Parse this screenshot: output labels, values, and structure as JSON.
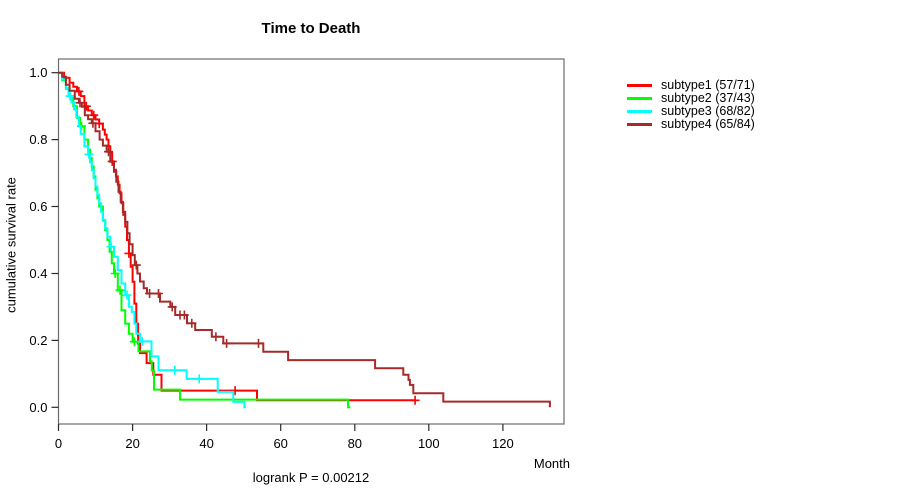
{
  "title": "Time to Death",
  "xlabel": "Month",
  "ylabel": "cumulative survival rate",
  "footnote": "logrank P = 0.00212",
  "legend": {
    "position": "right",
    "items": [
      {
        "label": "subtype1 (57/71)",
        "color": "#ff0000"
      },
      {
        "label": "subtype2 (37/43)",
        "color": "#00ff00"
      },
      {
        "label": "subtype3 (68/82)",
        "color": "#00ffff"
      },
      {
        "label": "subtype4 (65/84)",
        "color": "#a52a2a"
      }
    ]
  },
  "chart_data": {
    "type": "line",
    "subtype": "kaplan-meier-step",
    "title": "Time to Death",
    "xlabel": "Month",
    "ylabel": "cumulative survival rate",
    "annotation": "logrank P = 0.00212",
    "legend_position": "right",
    "grid": false,
    "xlim": [
      0,
      136.5
    ],
    "ylim": [
      0,
      1.04
    ],
    "x_ticks": [
      {
        "value": 0,
        "label": "0"
      },
      {
        "value": 20,
        "label": "20"
      },
      {
        "value": 40,
        "label": "40"
      },
      {
        "value": 60,
        "label": "60"
      },
      {
        "value": 80,
        "label": "80"
      },
      {
        "value": 100,
        "label": "100"
      },
      {
        "value": 120,
        "label": "120"
      }
    ],
    "y_ticks": [
      {
        "value": 0.0,
        "label": "0.0"
      },
      {
        "value": 0.2,
        "label": "0.2"
      },
      {
        "value": 0.4,
        "label": "0.4"
      },
      {
        "value": 0.6,
        "label": "0.6"
      },
      {
        "value": 0.8,
        "label": "0.8"
      },
      {
        "value": 1.0,
        "label": "1.0"
      }
    ],
    "series": [
      {
        "id": "subtype1",
        "name": "subtype1 (57/71)",
        "events": 57,
        "n": 71,
        "color": "#ff0000",
        "steps": [
          [
            0,
            1
          ],
          [
            1.5,
            0.985
          ],
          [
            3,
            0.97
          ],
          [
            4,
            0.958
          ],
          [
            5,
            0.944
          ],
          [
            6,
            0.93
          ],
          [
            7,
            0.9
          ],
          [
            8,
            0.887
          ],
          [
            9,
            0.873
          ],
          [
            10,
            0.86
          ],
          [
            11,
            0.848
          ],
          [
            12,
            0.83
          ],
          [
            12.5,
            0.815
          ],
          [
            13,
            0.8
          ],
          [
            13.5,
            0.78
          ],
          [
            14,
            0.76
          ],
          [
            14.5,
            0.735
          ],
          [
            15,
            0.71
          ],
          [
            15.5,
            0.69
          ],
          [
            16,
            0.665
          ],
          [
            16.5,
            0.64
          ],
          [
            17,
            0.61
          ],
          [
            17.5,
            0.575
          ],
          [
            18,
            0.54
          ],
          [
            18.5,
            0.5
          ],
          [
            19,
            0.46
          ],
          [
            19.5,
            0.42
          ],
          [
            20,
            0.375
          ],
          [
            20.5,
            0.31
          ],
          [
            21,
            0.25
          ],
          [
            21.5,
            0.19
          ],
          [
            22,
            0.162
          ],
          [
            23.8,
            0.132
          ],
          [
            25.6,
            0.097
          ],
          [
            27.8,
            0.05
          ],
          [
            53.6,
            0.021
          ],
          [
            96.5,
            0.021
          ]
        ],
        "censor_times": [
          5.5,
          7.5,
          9.5,
          11,
          14.5,
          19,
          47.7,
          96.3
        ]
      },
      {
        "id": "subtype2",
        "name": "subtype2 (37/43)",
        "events": 37,
        "n": 43,
        "color": "#00ff00",
        "steps": [
          [
            0,
            1
          ],
          [
            1,
            0.977
          ],
          [
            2,
            0.953
          ],
          [
            3,
            0.93
          ],
          [
            4,
            0.9
          ],
          [
            5,
            0.865
          ],
          [
            5.8,
            0.84
          ],
          [
            7,
            0.8
          ],
          [
            8,
            0.77
          ],
          [
            8.5,
            0.745
          ],
          [
            9,
            0.72
          ],
          [
            9.5,
            0.69
          ],
          [
            10,
            0.65
          ],
          [
            10.5,
            0.625
          ],
          [
            11,
            0.6
          ],
          [
            12,
            0.558
          ],
          [
            12.6,
            0.53
          ],
          [
            13.2,
            0.5
          ],
          [
            13.8,
            0.465
          ],
          [
            14.4,
            0.43
          ],
          [
            15,
            0.4
          ],
          [
            16,
            0.35
          ],
          [
            17,
            0.29
          ],
          [
            18,
            0.25
          ],
          [
            19,
            0.22
          ],
          [
            20,
            0.196
          ],
          [
            21.6,
            0.167
          ],
          [
            24.7,
            0.137
          ],
          [
            25.2,
            0.11
          ],
          [
            25.8,
            0.053
          ],
          [
            32.8,
            0.023
          ],
          [
            78,
            0.023
          ],
          [
            78.2,
            0
          ],
          [
            78.8,
            0
          ]
        ],
        "censor_times": [
          6.2,
          15.3,
          16.6,
          20.5
        ]
      },
      {
        "id": "subtype3",
        "name": "subtype3 (68/82)",
        "events": 68,
        "n": 82,
        "color": "#00ffff",
        "steps": [
          [
            0,
            1
          ],
          [
            1,
            0.98
          ],
          [
            2,
            0.951
          ],
          [
            2.7,
            0.93
          ],
          [
            3.5,
            0.912
          ],
          [
            4.2,
            0.89
          ],
          [
            4.8,
            0.868
          ],
          [
            5.5,
            0.84
          ],
          [
            6,
            0.817
          ],
          [
            7,
            0.78
          ],
          [
            8,
            0.756
          ],
          [
            8.5,
            0.732
          ],
          [
            9,
            0.708
          ],
          [
            9.5,
            0.684
          ],
          [
            10,
            0.66
          ],
          [
            10.5,
            0.635
          ],
          [
            11,
            0.61
          ],
          [
            11.5,
            0.585
          ],
          [
            12,
            0.56
          ],
          [
            12.6,
            0.535
          ],
          [
            13.2,
            0.51
          ],
          [
            14,
            0.48
          ],
          [
            15,
            0.45
          ],
          [
            16,
            0.41
          ],
          [
            17,
            0.37
          ],
          [
            18,
            0.335
          ],
          [
            19,
            0.3
          ],
          [
            19.8,
            0.285
          ],
          [
            20.5,
            0.25
          ],
          [
            21,
            0.22
          ],
          [
            22,
            0.197
          ],
          [
            25.1,
            0.152
          ],
          [
            27,
            0.111
          ],
          [
            34.6,
            0.085
          ],
          [
            43,
            0.046
          ],
          [
            47.2,
            0.016
          ],
          [
            50.2,
            0
          ],
          [
            50.6,
            0
          ]
        ],
        "censor_times": [
          3.1,
          8.2,
          14.2,
          18.5,
          22.6,
          31.4,
          38
        ]
      },
      {
        "id": "subtype4",
        "name": "subtype4 (65/84)",
        "events": 65,
        "n": 84,
        "color": "#a52a2a",
        "steps": [
          [
            0,
            1
          ],
          [
            1,
            0.988
          ],
          [
            2,
            0.964
          ],
          [
            3,
            0.946
          ],
          [
            4.4,
            0.922
          ],
          [
            5.5,
            0.91
          ],
          [
            6.3,
            0.898
          ],
          [
            7.1,
            0.873
          ],
          [
            8,
            0.861
          ],
          [
            9,
            0.849
          ],
          [
            10,
            0.825
          ],
          [
            11.1,
            0.8
          ],
          [
            12,
            0.782
          ],
          [
            13,
            0.764
          ],
          [
            14,
            0.734
          ],
          [
            15,
            0.704
          ],
          [
            15.6,
            0.674
          ],
          [
            16.2,
            0.644
          ],
          [
            16.8,
            0.614
          ],
          [
            17.4,
            0.584
          ],
          [
            18,
            0.554
          ],
          [
            18.6,
            0.52
          ],
          [
            19.2,
            0.487
          ],
          [
            20,
            0.455
          ],
          [
            20.6,
            0.425
          ],
          [
            21.3,
            0.4
          ],
          [
            22,
            0.376
          ],
          [
            23,
            0.356
          ],
          [
            23.9,
            0.34
          ],
          [
            27.4,
            0.316
          ],
          [
            30.2,
            0.3
          ],
          [
            31.5,
            0.276
          ],
          [
            34.7,
            0.251
          ],
          [
            36.9,
            0.231
          ],
          [
            41.4,
            0.211
          ],
          [
            44.5,
            0.191
          ],
          [
            55.3,
            0.166
          ],
          [
            62,
            0.141
          ],
          [
            85.5,
            0.117
          ],
          [
            93.1,
            0.097
          ],
          [
            94.5,
            0.082
          ],
          [
            94.9,
            0.067
          ],
          [
            95.8,
            0.042
          ],
          [
            103.9,
            0.017
          ],
          [
            132.7,
            0
          ]
        ],
        "censor_times": [
          5.8,
          9.3,
          13.5,
          21,
          24.6,
          27,
          30.7,
          32.8,
          34,
          36,
          42.5,
          45.4,
          54
        ]
      }
    ]
  }
}
